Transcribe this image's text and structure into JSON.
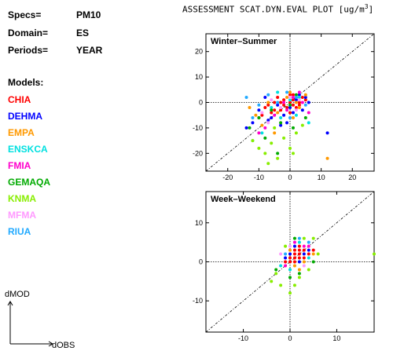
{
  "info": {
    "specs_label": "Specs=",
    "specs_value": "PM10",
    "domain_label": "Domain=",
    "domain_value": "ES",
    "periods_label": "Periods=",
    "periods_value": "YEAR"
  },
  "models_title": "Models:",
  "models": [
    {
      "name": "CHIA",
      "color": "#ff0000"
    },
    {
      "name": "DEHMA",
      "color": "#0000ff"
    },
    {
      "name": "EMPA",
      "color": "#ff9900"
    },
    {
      "name": "ENSKCA",
      "color": "#00e0e0"
    },
    {
      "name": "FMIA",
      "color": "#ff00cc"
    },
    {
      "name": "GEMAQA",
      "color": "#00aa00"
    },
    {
      "name": "KNMA",
      "color": "#88ee00"
    },
    {
      "name": "MFMA",
      "color": "#ff99ff"
    },
    {
      "name": "RIUA",
      "color": "#22aaff"
    }
  ],
  "axes_legend": {
    "y": "dMOD",
    "x": "dOBS"
  },
  "plot_title": "ASSESSMENT SCAT.DYN.EVAL PLOT [ug/m",
  "plot_title_sup": "3",
  "plot_title_end": "]",
  "chart_data": [
    {
      "type": "scatter",
      "title": "Winter–Summer",
      "xlim": [
        -27,
        27
      ],
      "ylim": [
        -27,
        27
      ],
      "xticks": [
        -20,
        -10,
        0,
        10,
        20
      ],
      "yticks": [
        -20,
        -10,
        0,
        10,
        20
      ],
      "reference_line": "1:1",
      "series": [
        {
          "color": "#ff0000",
          "points": [
            [
              -8,
              -2
            ],
            [
              -5,
              0
            ],
            [
              -3,
              -3
            ],
            [
              -2,
              1
            ],
            [
              0,
              0
            ],
            [
              1,
              -1
            ],
            [
              2,
              2
            ],
            [
              3,
              0
            ],
            [
              -6,
              -4
            ],
            [
              -4,
              2
            ],
            [
              -1,
              -2
            ],
            [
              0,
              3
            ],
            [
              1,
              1
            ],
            [
              4,
              2
            ],
            [
              -7,
              -1
            ],
            [
              -9,
              -5
            ],
            [
              -3,
              0
            ],
            [
              2,
              -2
            ],
            [
              5,
              1
            ],
            [
              0,
              -4
            ],
            [
              -2,
              -1
            ],
            [
              -10,
              -6
            ],
            [
              1,
              3
            ],
            [
              3,
              -1
            ],
            [
              -5,
              -3
            ]
          ]
        },
        {
          "color": "#0000ff",
          "points": [
            [
              -12,
              -8
            ],
            [
              -10,
              -3
            ],
            [
              -6,
              -6
            ],
            [
              -4,
              -1
            ],
            [
              -2,
              -5
            ],
            [
              0,
              -2
            ],
            [
              2,
              1
            ],
            [
              4,
              -3
            ],
            [
              6,
              0
            ],
            [
              -14,
              -10
            ],
            [
              -8,
              2
            ],
            [
              -1,
              -8
            ],
            [
              1,
              -4
            ],
            [
              3,
              3
            ],
            [
              12,
              -12
            ],
            [
              -3,
              -9
            ],
            [
              5,
              2
            ],
            [
              -7,
              -7
            ]
          ]
        },
        {
          "color": "#ff9900",
          "points": [
            [
              -11,
              -5
            ],
            [
              -7,
              0
            ],
            [
              -4,
              -4
            ],
            [
              -1,
              2
            ],
            [
              2,
              0
            ],
            [
              5,
              3
            ],
            [
              -9,
              -9
            ],
            [
              0,
              4
            ],
            [
              3,
              -2
            ],
            [
              -5,
              -12
            ],
            [
              12,
              -22
            ],
            [
              -13,
              -2
            ],
            [
              1,
              -6
            ]
          ]
        },
        {
          "color": "#00e0e0",
          "points": [
            [
              -9,
              -12
            ],
            [
              -6,
              -2
            ],
            [
              -3,
              -6
            ],
            [
              0,
              1
            ],
            [
              3,
              2
            ],
            [
              -12,
              -15
            ],
            [
              -4,
              4
            ],
            [
              2,
              -5
            ],
            [
              6,
              -8
            ]
          ]
        },
        {
          "color": "#ff00cc",
          "points": [
            [
              -8,
              -10
            ],
            [
              -5,
              -5
            ],
            [
              -2,
              0
            ],
            [
              1,
              2
            ],
            [
              4,
              0
            ],
            [
              -10,
              -12
            ],
            [
              -1,
              -3
            ],
            [
              3,
              4
            ],
            [
              6,
              -4
            ]
          ]
        },
        {
          "color": "#00aa00",
          "points": [
            [
              -10,
              -6
            ],
            [
              -6,
              -3
            ],
            [
              -3,
              -8
            ],
            [
              0,
              -1
            ],
            [
              2,
              3
            ],
            [
              -8,
              -14
            ],
            [
              -4,
              -20
            ],
            [
              1,
              -10
            ],
            [
              5,
              -6
            ],
            [
              -13,
              -10
            ]
          ]
        },
        {
          "color": "#88ee00",
          "points": [
            [
              -10,
              -18
            ],
            [
              -8,
              -20
            ],
            [
              -6,
              -16
            ],
            [
              -4,
              -22
            ],
            [
              -2,
              -14
            ],
            [
              0,
              -18
            ],
            [
              2,
              -12
            ],
            [
              -5,
              -10
            ],
            [
              -7,
              -24
            ],
            [
              4,
              -9
            ],
            [
              -12,
              -15
            ],
            [
              1,
              -20
            ]
          ]
        },
        {
          "color": "#ff99ff",
          "points": [
            [
              -9,
              -4
            ],
            [
              -6,
              1
            ],
            [
              -3,
              -2
            ],
            [
              0,
              2
            ],
            [
              3,
              1
            ],
            [
              -7,
              -8
            ],
            [
              2,
              -3
            ]
          ]
        },
        {
          "color": "#22aaff",
          "points": [
            [
              -14,
              2
            ],
            [
              -10,
              -1
            ],
            [
              -7,
              3
            ],
            [
              -4,
              0
            ],
            [
              -1,
              4
            ],
            [
              2,
              2
            ],
            [
              5,
              -1
            ],
            [
              -12,
              -6
            ],
            [
              0,
              -6
            ]
          ]
        }
      ]
    },
    {
      "type": "scatter",
      "title": "Week–Weekend",
      "xlim": [
        -18,
        18
      ],
      "ylim": [
        -18,
        18
      ],
      "xticks": [
        -10,
        0,
        10
      ],
      "yticks": [
        -10,
        0,
        10
      ],
      "reference_line": "1:1",
      "series": [
        {
          "color": "#ff0000",
          "points": [
            [
              0,
              0
            ],
            [
              1,
              1
            ],
            [
              2,
              2
            ],
            [
              3,
              1
            ],
            [
              1,
              2
            ],
            [
              2,
              3
            ],
            [
              4,
              2
            ],
            [
              0,
              1
            ],
            [
              1,
              0
            ],
            [
              3,
              3
            ],
            [
              2,
              1
            ],
            [
              -1,
              0
            ],
            [
              5,
              3
            ],
            [
              2,
              4
            ],
            [
              1,
              3
            ]
          ]
        },
        {
          "color": "#0000ff",
          "points": [
            [
              0,
              2
            ],
            [
              2,
              0
            ],
            [
              3,
              2
            ],
            [
              1,
              4
            ],
            [
              4,
              3
            ],
            [
              -1,
              1
            ]
          ]
        },
        {
          "color": "#ff9900",
          "points": [
            [
              1,
              -1
            ],
            [
              3,
              0
            ],
            [
              2,
              -2
            ],
            [
              5,
              2
            ],
            [
              0,
              3
            ]
          ]
        },
        {
          "color": "#00e0e0",
          "points": [
            [
              -2,
              -1
            ],
            [
              0,
              -2
            ],
            [
              2,
              5
            ],
            [
              4,
              1
            ]
          ]
        },
        {
          "color": "#ff00cc",
          "points": [
            [
              1,
              5
            ],
            [
              3,
              4
            ],
            [
              -1,
              -1
            ],
            [
              4,
              4
            ]
          ]
        },
        {
          "color": "#00aa00",
          "points": [
            [
              -3,
              -2
            ],
            [
              0,
              -4
            ],
            [
              2,
              -3
            ],
            [
              5,
              0
            ],
            [
              1,
              6
            ]
          ]
        },
        {
          "color": "#88ee00",
          "points": [
            [
              -4,
              -5
            ],
            [
              -2,
              -6
            ],
            [
              0,
              -8
            ],
            [
              2,
              -4
            ],
            [
              4,
              -2
            ],
            [
              -3,
              -3
            ],
            [
              1,
              -6
            ],
            [
              6,
              2
            ],
            [
              3,
              6
            ],
            [
              -1,
              4
            ],
            [
              5,
              6
            ],
            [
              18,
              2
            ]
          ]
        },
        {
          "color": "#ff99ff",
          "points": [
            [
              -2,
              2
            ],
            [
              0,
              4
            ],
            [
              3,
              -1
            ]
          ]
        },
        {
          "color": "#22aaff",
          "points": [
            [
              -1,
              2
            ],
            [
              2,
              6
            ],
            [
              4,
              5
            ]
          ]
        }
      ]
    }
  ]
}
